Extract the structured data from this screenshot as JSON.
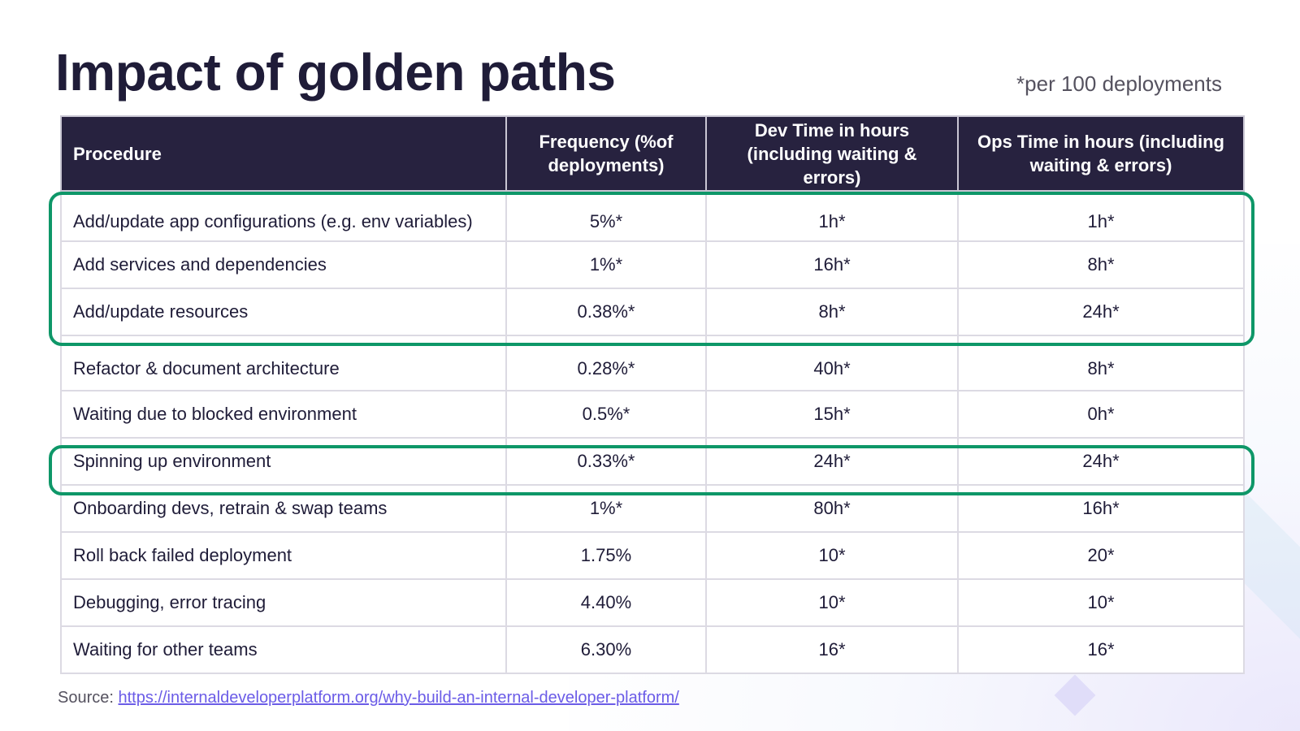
{
  "title": "Impact of golden paths",
  "footnote": "*per 100 deployments",
  "table": {
    "headers": {
      "procedure": "Procedure",
      "frequency": "Frequency (%of deployments)",
      "dev_time": "Dev Time in hours (including waiting & errors)",
      "ops_time": "Ops Time in hours (including waiting & errors)"
    },
    "rows": [
      {
        "procedure": "Add/update app configurations (e.g. env variables)",
        "frequency": "5%*",
        "dev_time": "1h*",
        "ops_time": "1h*"
      },
      {
        "procedure": "Add services and dependencies",
        "frequency": "1%*",
        "dev_time": "16h*",
        "ops_time": "8h*"
      },
      {
        "procedure": "Add/update resources",
        "frequency": "0.38%*",
        "dev_time": "8h*",
        "ops_time": "24h*"
      },
      {
        "procedure": "Refactor & document architecture",
        "frequency": "0.28%*",
        "dev_time": "40h*",
        "ops_time": "8h*"
      },
      {
        "procedure": "Waiting due to blocked environment",
        "frequency": "0.5%*",
        "dev_time": "15h*",
        "ops_time": "0h*"
      },
      {
        "procedure": "Spinning up environment",
        "frequency": "0.33%*",
        "dev_time": "24h*",
        "ops_time": "24h*"
      },
      {
        "procedure": "Onboarding devs, retrain & swap teams",
        "frequency": "1%*",
        "dev_time": "80h*",
        "ops_time": "16h*"
      },
      {
        "procedure": "Roll back failed deployment",
        "frequency": "1.75%",
        "dev_time": "10*",
        "ops_time": "20*"
      },
      {
        "procedure": "Debugging, error tracing",
        "frequency": "4.40%",
        "dev_time": "10*",
        "ops_time": "10*"
      },
      {
        "procedure": "Waiting for other teams",
        "frequency": "6.30%",
        "dev_time": "16*",
        "ops_time": "16*"
      }
    ]
  },
  "source": {
    "label": "Source:",
    "link_text": "https://internaldeveloperplatform.org/why-build-an-internal-developer-platform/",
    "href": "https://internaldeveloperplatform.org/why-build-an-internal-developer-platform/"
  },
  "colors": {
    "header_bg": "#27223f",
    "highlight": "#0e9768",
    "link": "#6b5ce7",
    "title": "#1f1c38"
  }
}
